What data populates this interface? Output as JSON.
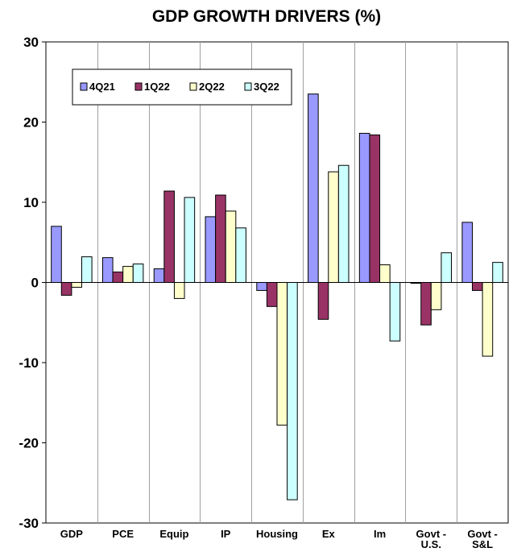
{
  "chart_data": {
    "type": "bar",
    "title": "GDP GROWTH DRIVERS (%)",
    "xlabel": "",
    "ylabel": "",
    "ylim": [
      -30,
      30
    ],
    "yticks": [
      "30",
      "20",
      "10",
      "0",
      "-10",
      "-20",
      "-30"
    ],
    "grid": false,
    "legend_position": "top-left",
    "categories": [
      [
        "GDP"
      ],
      [
        "PCE"
      ],
      [
        "Equip"
      ],
      [
        "IP"
      ],
      [
        "Housing"
      ],
      [
        "Ex"
      ],
      [
        "Im"
      ],
      [
        "Govt -",
        "U.S."
      ],
      [
        "Govt -",
        "S&L"
      ]
    ],
    "series": [
      {
        "name": "4Q21",
        "color": "#9999ff",
        "values": [
          7.0,
          3.1,
          1.7,
          8.2,
          -1.0,
          23.5,
          18.6,
          -0.1,
          7.5
        ]
      },
      {
        "name": "1Q22",
        "color": "#993366",
        "values": [
          -1.6,
          1.3,
          11.4,
          10.9,
          -3.0,
          -4.6,
          18.4,
          -5.3,
          -1.0
        ]
      },
      {
        "name": "2Q22",
        "color": "#ffffcc",
        "values": [
          -0.6,
          2.0,
          -2.0,
          8.9,
          -17.8,
          13.8,
          2.2,
          -3.4,
          -9.2
        ]
      },
      {
        "name": "3Q22",
        "color": "#ccffff",
        "values": [
          3.2,
          2.3,
          10.6,
          6.8,
          -27.1,
          14.6,
          -7.3,
          3.7,
          2.5
        ]
      }
    ]
  }
}
